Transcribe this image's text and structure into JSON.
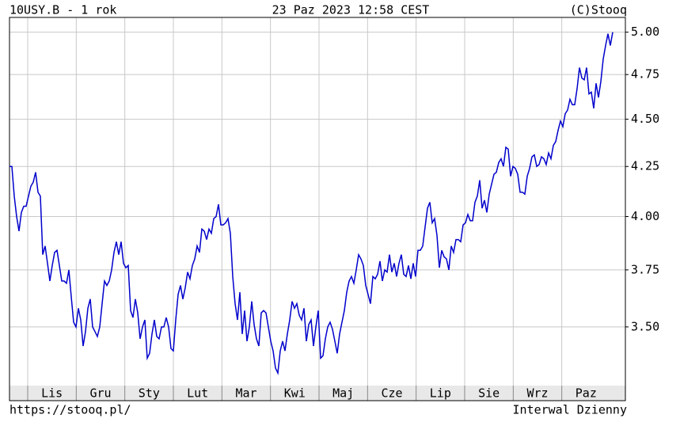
{
  "chart_data": {
    "type": "line",
    "title": "10USY.B - 1 rok",
    "subtitle": "23 Paz 2023 12:58 CEST",
    "source": "(C)Stooq",
    "url": "https://stooq.pl/",
    "interval": "Interwal Dzienny",
    "x_labels": [
      "Lis",
      "Gru",
      "Sty",
      "Lut",
      "Mar",
      "Kwi",
      "Maj",
      "Cze",
      "Lip",
      "Sie",
      "Wrz",
      "Paz"
    ],
    "log_scale": true,
    "grid": true,
    "ylim": [
      3.26,
      5.09
    ],
    "yticks": [
      {
        "value": 3.5,
        "label": "3.50"
      },
      {
        "value": 3.75,
        "label": "3.75"
      },
      {
        "value": 4.0,
        "label": "4.00"
      },
      {
        "value": 4.25,
        "label": "4.25"
      },
      {
        "value": 4.5,
        "label": "4.50"
      },
      {
        "value": 4.75,
        "label": "4.75"
      },
      {
        "value": 5.0,
        "label": "5.00"
      }
    ],
    "series": [
      {
        "color": "#0000cc",
        "values": [
          4.25,
          4.25,
          4.1,
          4.0,
          3.93,
          4.02,
          4.05,
          4.05,
          4.1,
          4.15,
          4.17,
          4.22,
          4.12,
          4.1,
          3.82,
          3.86,
          3.78,
          3.7,
          3.77,
          3.83,
          3.84,
          3.77,
          3.7,
          3.7,
          3.69,
          3.75,
          3.63,
          3.52,
          3.5,
          3.58,
          3.53,
          3.42,
          3.48,
          3.58,
          3.62,
          3.5,
          3.48,
          3.46,
          3.5,
          3.6,
          3.7,
          3.68,
          3.7,
          3.75,
          3.83,
          3.88,
          3.82,
          3.88,
          3.78,
          3.76,
          3.77,
          3.57,
          3.54,
          3.62,
          3.56,
          3.45,
          3.5,
          3.53,
          3.37,
          3.39,
          3.47,
          3.53,
          3.46,
          3.45,
          3.5,
          3.5,
          3.54,
          3.5,
          3.41,
          3.4,
          3.53,
          3.64,
          3.68,
          3.62,
          3.67,
          3.74,
          3.71,
          3.77,
          3.8,
          3.86,
          3.83,
          3.94,
          3.93,
          3.89,
          3.94,
          3.92,
          3.99,
          4.0,
          4.06,
          3.96,
          3.96,
          3.97,
          3.99,
          3.92,
          3.72,
          3.6,
          3.53,
          3.65,
          3.47,
          3.57,
          3.44,
          3.5,
          3.61,
          3.51,
          3.45,
          3.42,
          3.56,
          3.57,
          3.56,
          3.5,
          3.44,
          3.4,
          3.33,
          3.31,
          3.4,
          3.44,
          3.4,
          3.47,
          3.53,
          3.61,
          3.58,
          3.6,
          3.55,
          3.53,
          3.58,
          3.44,
          3.51,
          3.53,
          3.42,
          3.5,
          3.57,
          3.37,
          3.38,
          3.45,
          3.5,
          3.52,
          3.49,
          3.44,
          3.39,
          3.47,
          3.52,
          3.57,
          3.65,
          3.7,
          3.72,
          3.69,
          3.75,
          3.82,
          3.8,
          3.77,
          3.68,
          3.64,
          3.6,
          3.72,
          3.71,
          3.73,
          3.79,
          3.7,
          3.75,
          3.74,
          3.82,
          3.74,
          3.78,
          3.72,
          3.78,
          3.82,
          3.73,
          3.72,
          3.77,
          3.71,
          3.78,
          3.72,
          3.84,
          3.84,
          3.86,
          3.95,
          4.04,
          4.07,
          3.97,
          3.99,
          3.91,
          3.76,
          3.84,
          3.81,
          3.8,
          3.75,
          3.86,
          3.83,
          3.89,
          3.89,
          3.88,
          3.96,
          3.97,
          4.01,
          3.98,
          3.98,
          4.07,
          4.1,
          4.18,
          4.04,
          4.08,
          4.02,
          4.11,
          4.16,
          4.21,
          4.22,
          4.27,
          4.29,
          4.25,
          4.35,
          4.34,
          4.2,
          4.25,
          4.24,
          4.21,
          4.12,
          4.12,
          4.11,
          4.2,
          4.24,
          4.3,
          4.31,
          4.25,
          4.26,
          4.3,
          4.29,
          4.26,
          4.32,
          4.29,
          4.36,
          4.38,
          4.44,
          4.49,
          4.46,
          4.53,
          4.55,
          4.61,
          4.58,
          4.58,
          4.67,
          4.79,
          4.73,
          4.72,
          4.79,
          4.64,
          4.65,
          4.56,
          4.7,
          4.62,
          4.71,
          4.84,
          4.92,
          4.99,
          4.92,
          5.0
        ]
      }
    ]
  }
}
